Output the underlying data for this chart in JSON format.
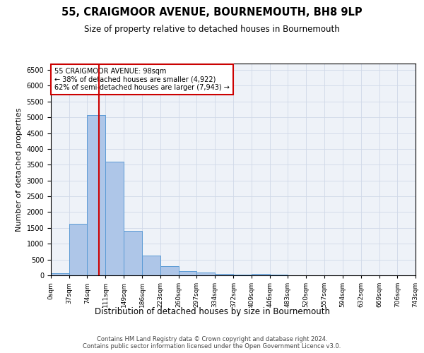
{
  "title": "55, CRAIGMOOR AVENUE, BOURNEMOUTH, BH8 9LP",
  "subtitle": "Size of property relative to detached houses in Bournemouth",
  "xlabel": "Distribution of detached houses by size in Bournemouth",
  "ylabel": "Number of detached properties",
  "bar_color": "#aec6e8",
  "bar_edge_color": "#5b9bd5",
  "grid_color": "#d0d8e8",
  "background_color": "#eef2f8",
  "bin_edges": [
    0,
    37,
    74,
    111,
    149,
    186,
    223,
    260,
    297,
    334,
    372,
    409,
    446,
    483,
    520,
    557,
    594,
    632,
    669,
    706,
    743
  ],
  "bin_labels": [
    "0sqm",
    "37sqm",
    "74sqm",
    "111sqm",
    "149sqm",
    "186sqm",
    "223sqm",
    "260sqm",
    "297sqm",
    "334sqm",
    "372sqm",
    "409sqm",
    "446sqm",
    "483sqm",
    "520sqm",
    "557sqm",
    "594sqm",
    "632sqm",
    "669sqm",
    "706sqm",
    "743sqm"
  ],
  "bar_heights": [
    60,
    1630,
    5080,
    3590,
    1400,
    620,
    300,
    140,
    90,
    50,
    30,
    50,
    20,
    10,
    10,
    5,
    5,
    5,
    5,
    5
  ],
  "property_line_x": 98,
  "annotation_line1": "55 CRAIGMOOR AVENUE: 98sqm",
  "annotation_line2": "← 38% of detached houses are smaller (4,922)",
  "annotation_line3": "62% of semi-detached houses are larger (7,943) →",
  "vline_color": "#cc0000",
  "annotation_box_edge_color": "#cc0000",
  "footer_line1": "Contains HM Land Registry data © Crown copyright and database right 2024.",
  "footer_line2": "Contains public sector information licensed under the Open Government Licence v3.0.",
  "ylim": [
    0,
    6700
  ],
  "yticks": [
    0,
    500,
    1000,
    1500,
    2000,
    2500,
    3000,
    3500,
    4000,
    4500,
    5000,
    5500,
    6000,
    6500
  ]
}
